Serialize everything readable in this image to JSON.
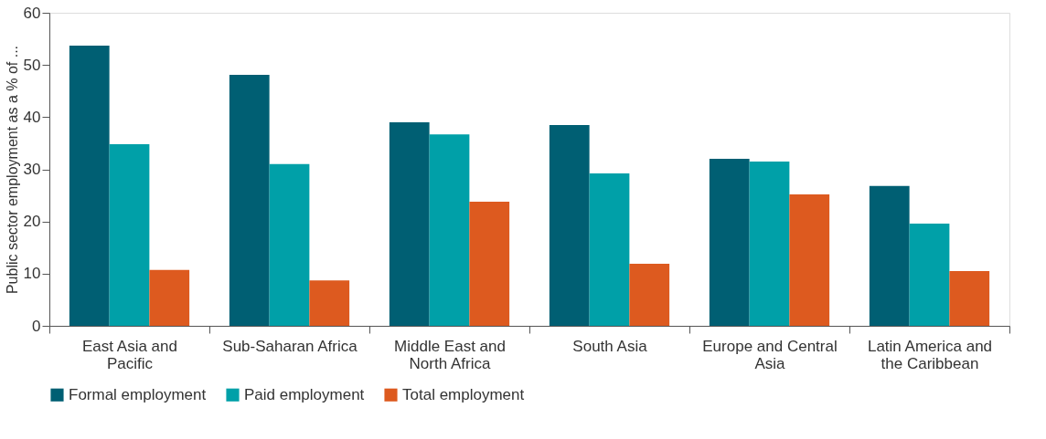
{
  "chart_data": {
    "type": "bar",
    "ylabel": "Public sector employment as a % of ...",
    "categories": [
      "East Asia and Pacific",
      "Sub-Saharan Africa",
      "Middle East and North Africa",
      "South Asia",
      "Europe and Central Asia",
      "Latin America and the Caribbean"
    ],
    "series": [
      {
        "name": "Formal employment",
        "color": "#005f73",
        "values": [
          53.7,
          48.1,
          39.0,
          38.5,
          32.0,
          26.8
        ]
      },
      {
        "name": "Paid employment",
        "color": "#00a0a8",
        "values": [
          34.8,
          31.0,
          36.7,
          29.2,
          31.5,
          19.6
        ]
      },
      {
        "name": "Total employment",
        "color": "#dd5a1f",
        "values": [
          10.7,
          8.7,
          23.8,
          11.9,
          25.2,
          10.5
        ]
      }
    ],
    "ylim": [
      0,
      60
    ],
    "yticks": [
      0,
      10,
      20,
      30,
      40,
      50,
      60
    ],
    "grid": false,
    "legend": "bottom"
  }
}
